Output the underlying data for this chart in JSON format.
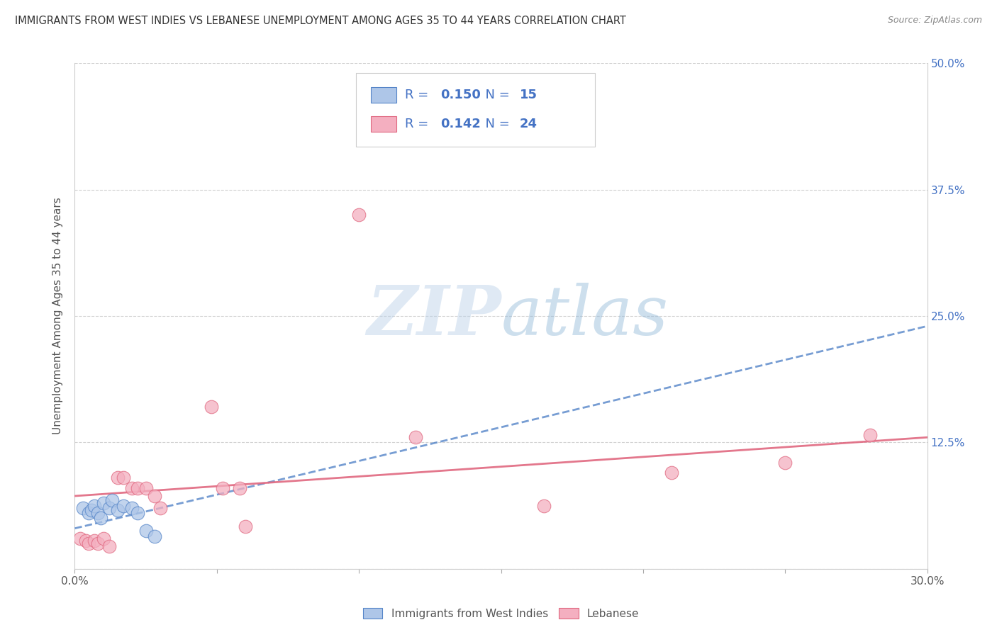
{
  "title": "IMMIGRANTS FROM WEST INDIES VS LEBANESE UNEMPLOYMENT AMONG AGES 35 TO 44 YEARS CORRELATION CHART",
  "source": "Source: ZipAtlas.com",
  "ylabel": "Unemployment Among Ages 35 to 44 years",
  "xlim": [
    0.0,
    0.3
  ],
  "ylim": [
    0.0,
    0.5
  ],
  "xticks": [
    0.0,
    0.05,
    0.1,
    0.15,
    0.2,
    0.25,
    0.3
  ],
  "xticklabels": [
    "0.0%",
    "",
    "",
    "",
    "",
    "",
    "30.0%"
  ],
  "yticks": [
    0.0,
    0.125,
    0.25,
    0.375,
    0.5
  ],
  "yticklabels": [
    "",
    "12.5%",
    "25.0%",
    "37.5%",
    "50.0%"
  ],
  "west_indies_R": "0.150",
  "west_indies_N": "15",
  "lebanese_R": "0.142",
  "lebanese_N": "24",
  "west_indies_color": "#aec6e8",
  "lebanese_color": "#f4afc0",
  "west_indies_edge_color": "#5585c8",
  "lebanese_edge_color": "#e06880",
  "west_indies_line_color": "#5585c8",
  "lebanese_line_color": "#e06880",
  "legend_text_color": "#4472c4",
  "watermark_color": "#d0dff0",
  "grid_color": "#cccccc",
  "west_indies_scatter_x": [
    0.003,
    0.005,
    0.006,
    0.007,
    0.008,
    0.009,
    0.01,
    0.012,
    0.013,
    0.015,
    0.017,
    0.02,
    0.022,
    0.025,
    0.028
  ],
  "west_indies_scatter_y": [
    0.06,
    0.055,
    0.058,
    0.062,
    0.055,
    0.05,
    0.065,
    0.06,
    0.068,
    0.058,
    0.062,
    0.06,
    0.055,
    0.038,
    0.032
  ],
  "lebanese_scatter_x": [
    0.002,
    0.004,
    0.005,
    0.007,
    0.008,
    0.01,
    0.012,
    0.015,
    0.017,
    0.02,
    0.022,
    0.025,
    0.028,
    0.03,
    0.048,
    0.052,
    0.058,
    0.06,
    0.1,
    0.12,
    0.165,
    0.21,
    0.25,
    0.28
  ],
  "lebanese_scatter_y": [
    0.03,
    0.028,
    0.025,
    0.028,
    0.025,
    0.03,
    0.022,
    0.09,
    0.09,
    0.08,
    0.08,
    0.08,
    0.072,
    0.06,
    0.16,
    0.08,
    0.08,
    0.042,
    0.35,
    0.13,
    0.062,
    0.095,
    0.105,
    0.132
  ],
  "wi_line_x0": 0.0,
  "wi_line_x1": 0.3,
  "wi_line_y0": 0.04,
  "wi_line_y1": 0.24,
  "lb_line_x0": 0.0,
  "lb_line_x1": 0.3,
  "lb_line_y0": 0.072,
  "lb_line_y1": 0.13
}
